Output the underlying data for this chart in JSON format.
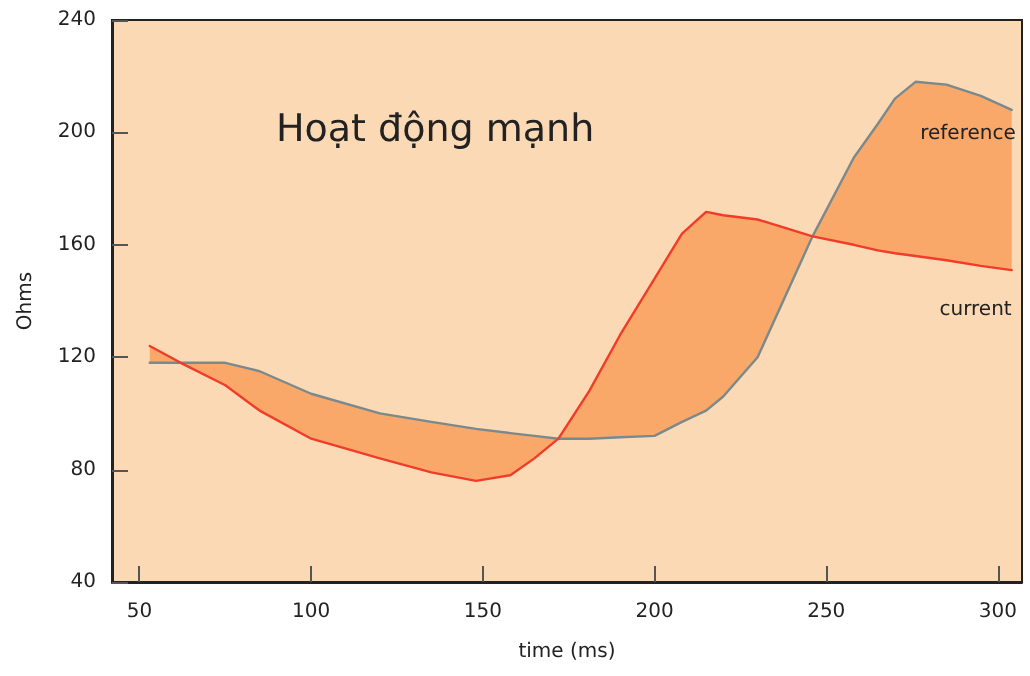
{
  "chart_data": {
    "type": "line",
    "title": "Hoạt động mạnh",
    "xlabel": "time (ms)",
    "ylabel": "Ohms",
    "xlim": [
      42,
      307
    ],
    "xticks": [
      50,
      100,
      150,
      200,
      250,
      300
    ],
    "ylim": [
      40,
      240
    ],
    "yticks": [
      40,
      80,
      120,
      160,
      200,
      240
    ],
    "grid": false,
    "legend": false,
    "marker": "none",
    "line_style": "solid",
    "x": [
      53,
      62,
      75,
      85,
      100,
      120,
      135,
      148,
      158,
      165,
      172,
      181,
      190,
      200,
      208,
      215,
      220,
      230,
      246,
      258,
      265,
      270,
      276,
      285,
      295,
      304
    ],
    "series": [
      {
        "name": "reference",
        "color": "#7a8a8c",
        "values": [
          118,
          118,
          118,
          115,
          107,
          100,
          97,
          94.5,
          93,
          92,
          91,
          91,
          91.5,
          92,
          97,
          101,
          106,
          120,
          163,
          191,
          203,
          212,
          218,
          217,
          213,
          208
        ],
        "lower": [
          118,
          118,
          110,
          101,
          91,
          84,
          79,
          76,
          78,
          84,
          91,
          91,
          91.5,
          92,
          97,
          101,
          106,
          120,
          163,
          160,
          158,
          157,
          156,
          154.5,
          152.5,
          151
        ],
        "upper": [
          124,
          118,
          118,
          115,
          107,
          100,
          97,
          94.5,
          93,
          92,
          91,
          108,
          128,
          148,
          164,
          171.7,
          170.5,
          169,
          163,
          191,
          203,
          212,
          218,
          217,
          213,
          208
        ]
      },
      {
        "name": "current",
        "color": "#f03c28",
        "values": [
          124,
          118,
          110,
          101,
          91,
          84,
          79,
          76,
          78,
          84,
          91,
          108,
          128,
          148,
          164,
          171.7,
          170.5,
          169,
          163,
          160,
          158,
          157,
          156,
          154.5,
          152.5,
          151
        ]
      }
    ]
  }
}
